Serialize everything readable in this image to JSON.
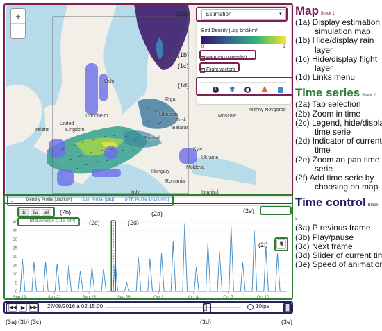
{
  "map": {
    "zoom_in": "+",
    "zoom_out": "−",
    "mode_select": "Estimation",
    "legend_title": "Bird Density [Log bird/km²]",
    "legend_min": "0",
    "legend_max": "2",
    "rain_label": "Rain (>0.01mm/hr)",
    "flight_label": "Flight vectors",
    "places": [
      {
        "name": "Trondheim"
      },
      {
        "name": "Oslo"
      },
      {
        "name": "Riga"
      },
      {
        "name": "Lithuania"
      },
      {
        "name": "Belarus"
      },
      {
        "name": "Minsk"
      },
      {
        "name": "Poland"
      },
      {
        "name": "Ireland"
      },
      {
        "name": "United"
      },
      {
        "name": "Kingdom"
      },
      {
        "name": "Hungary"
      },
      {
        "name": "Romania"
      },
      {
        "name": "Moldova"
      },
      {
        "name": "Kyiv"
      },
      {
        "name": "Ukraine"
      },
      {
        "name": "Moscow"
      },
      {
        "name": "Nizhny Novgorod"
      },
      {
        "name": "Istanbul"
      },
      {
        "name": "Italy"
      }
    ],
    "link_icons": [
      "info-icon",
      "settings-icon",
      "github-icon",
      "matlab-icon",
      "data-icon"
    ]
  },
  "tabs": [
    {
      "label": "Density Profile [bird/km²]"
    },
    {
      "label": "Sum Profile [bird]"
    },
    {
      "label": "MTR Profile [bird/km/hr]"
    }
  ],
  "zoom_buttons": [
    "1d",
    "1w",
    "all"
  ],
  "legend": {
    "series": "Total Average [2.2M km²]"
  },
  "time": {
    "current": "27/09/2016 à 02:15:00",
    "speed": "10fps"
  },
  "callouts": {
    "c1a": "(1a)",
    "c1b": "(1b)",
    "c1c": "(1c)",
    "c1d": "(1d)",
    "c2a": "(2a)",
    "c2b": "(2b)",
    "c2c": "(2c)",
    "c2d": "(2d)",
    "c2e": "(2e)",
    "c2f": "(2f)",
    "c3a": "(3a)",
    "c3b": "(3b)",
    "c3c": "(3c)",
    "c3d": "(3d)",
    "c3e": "(3e)"
  },
  "right_panel": {
    "map_title": "Map",
    "map_block": "Block 1",
    "map_lines": [
      "(1a) Display estimation or",
      "simulation map",
      "(1b) Hide/display rain",
      "layer",
      "(1c) Hide/display flight",
      "layer",
      "(1d) Links menu"
    ],
    "ts_title": "Time series",
    "ts_block": "Block 2",
    "ts_lines": [
      "(2a) Tab selection",
      "(2b) Zoom in time",
      "(2c) Legend, hide/display",
      "time serie",
      "(2d) Indicator of current",
      "time",
      "(2e) Zoom an pan time",
      "serie",
      "(2f) Add time serie by",
      "choosing on map"
    ],
    "tc_title": "Time control",
    "tc_block": "Block 3",
    "tc_lines": [
      "(3a) P revious frame",
      "(3b) Play/pause",
      "(3c) Next frame",
      "(3d) Slider of current time",
      "(3e) Speed of animation"
    ]
  },
  "colors": {
    "map": "#7b1f55",
    "timeseries": "#2e7d32",
    "timecontrol": "#22205e",
    "line": "#4a90c8"
  },
  "chart_data": {
    "type": "line",
    "title": "",
    "xlabel": "",
    "ylabel": "",
    "x_ticks": [
      "Sep 19",
      "Sep 22",
      "Sep 25",
      "Sep 28",
      "Oct 1",
      "Oct 4",
      "Oct 7",
      "Oct 10"
    ],
    "y_ticks": [
      0,
      5,
      10,
      15,
      20,
      25,
      30,
      35,
      40
    ],
    "ylim": [
      0,
      40
    ],
    "x_start_day": 19,
    "series": [
      {
        "name": "Total Average [2.2M km²]",
        "peaks": [
          {
            "day": 19.25,
            "value": 19
          },
          {
            "day": 20.25,
            "value": 17
          },
          {
            "day": 21.25,
            "value": 17
          },
          {
            "day": 22.25,
            "value": 16
          },
          {
            "day": 23.25,
            "value": 15
          },
          {
            "day": 24.25,
            "value": 12
          },
          {
            "day": 25.25,
            "value": 14
          },
          {
            "day": 26.25,
            "value": 13
          },
          {
            "day": 27.25,
            "value": 18
          },
          {
            "day": 28.25,
            "value": 5
          },
          {
            "day": 29.25,
            "value": 20
          },
          {
            "day": 30.25,
            "value": 19
          },
          {
            "day": 31.25,
            "value": 22
          },
          {
            "day": 32.25,
            "value": 29
          },
          {
            "day": 33.25,
            "value": 39
          },
          {
            "day": 34.25,
            "value": 14
          },
          {
            "day": 35.25,
            "value": 28
          },
          {
            "day": 36.25,
            "value": 23
          },
          {
            "day": 37.25,
            "value": 38
          },
          {
            "day": 38.25,
            "value": 17
          },
          {
            "day": 39.25,
            "value": 35
          },
          {
            "day": 40.25,
            "value": 26
          },
          {
            "day": 41.25,
            "value": 22
          }
        ]
      }
    ]
  }
}
